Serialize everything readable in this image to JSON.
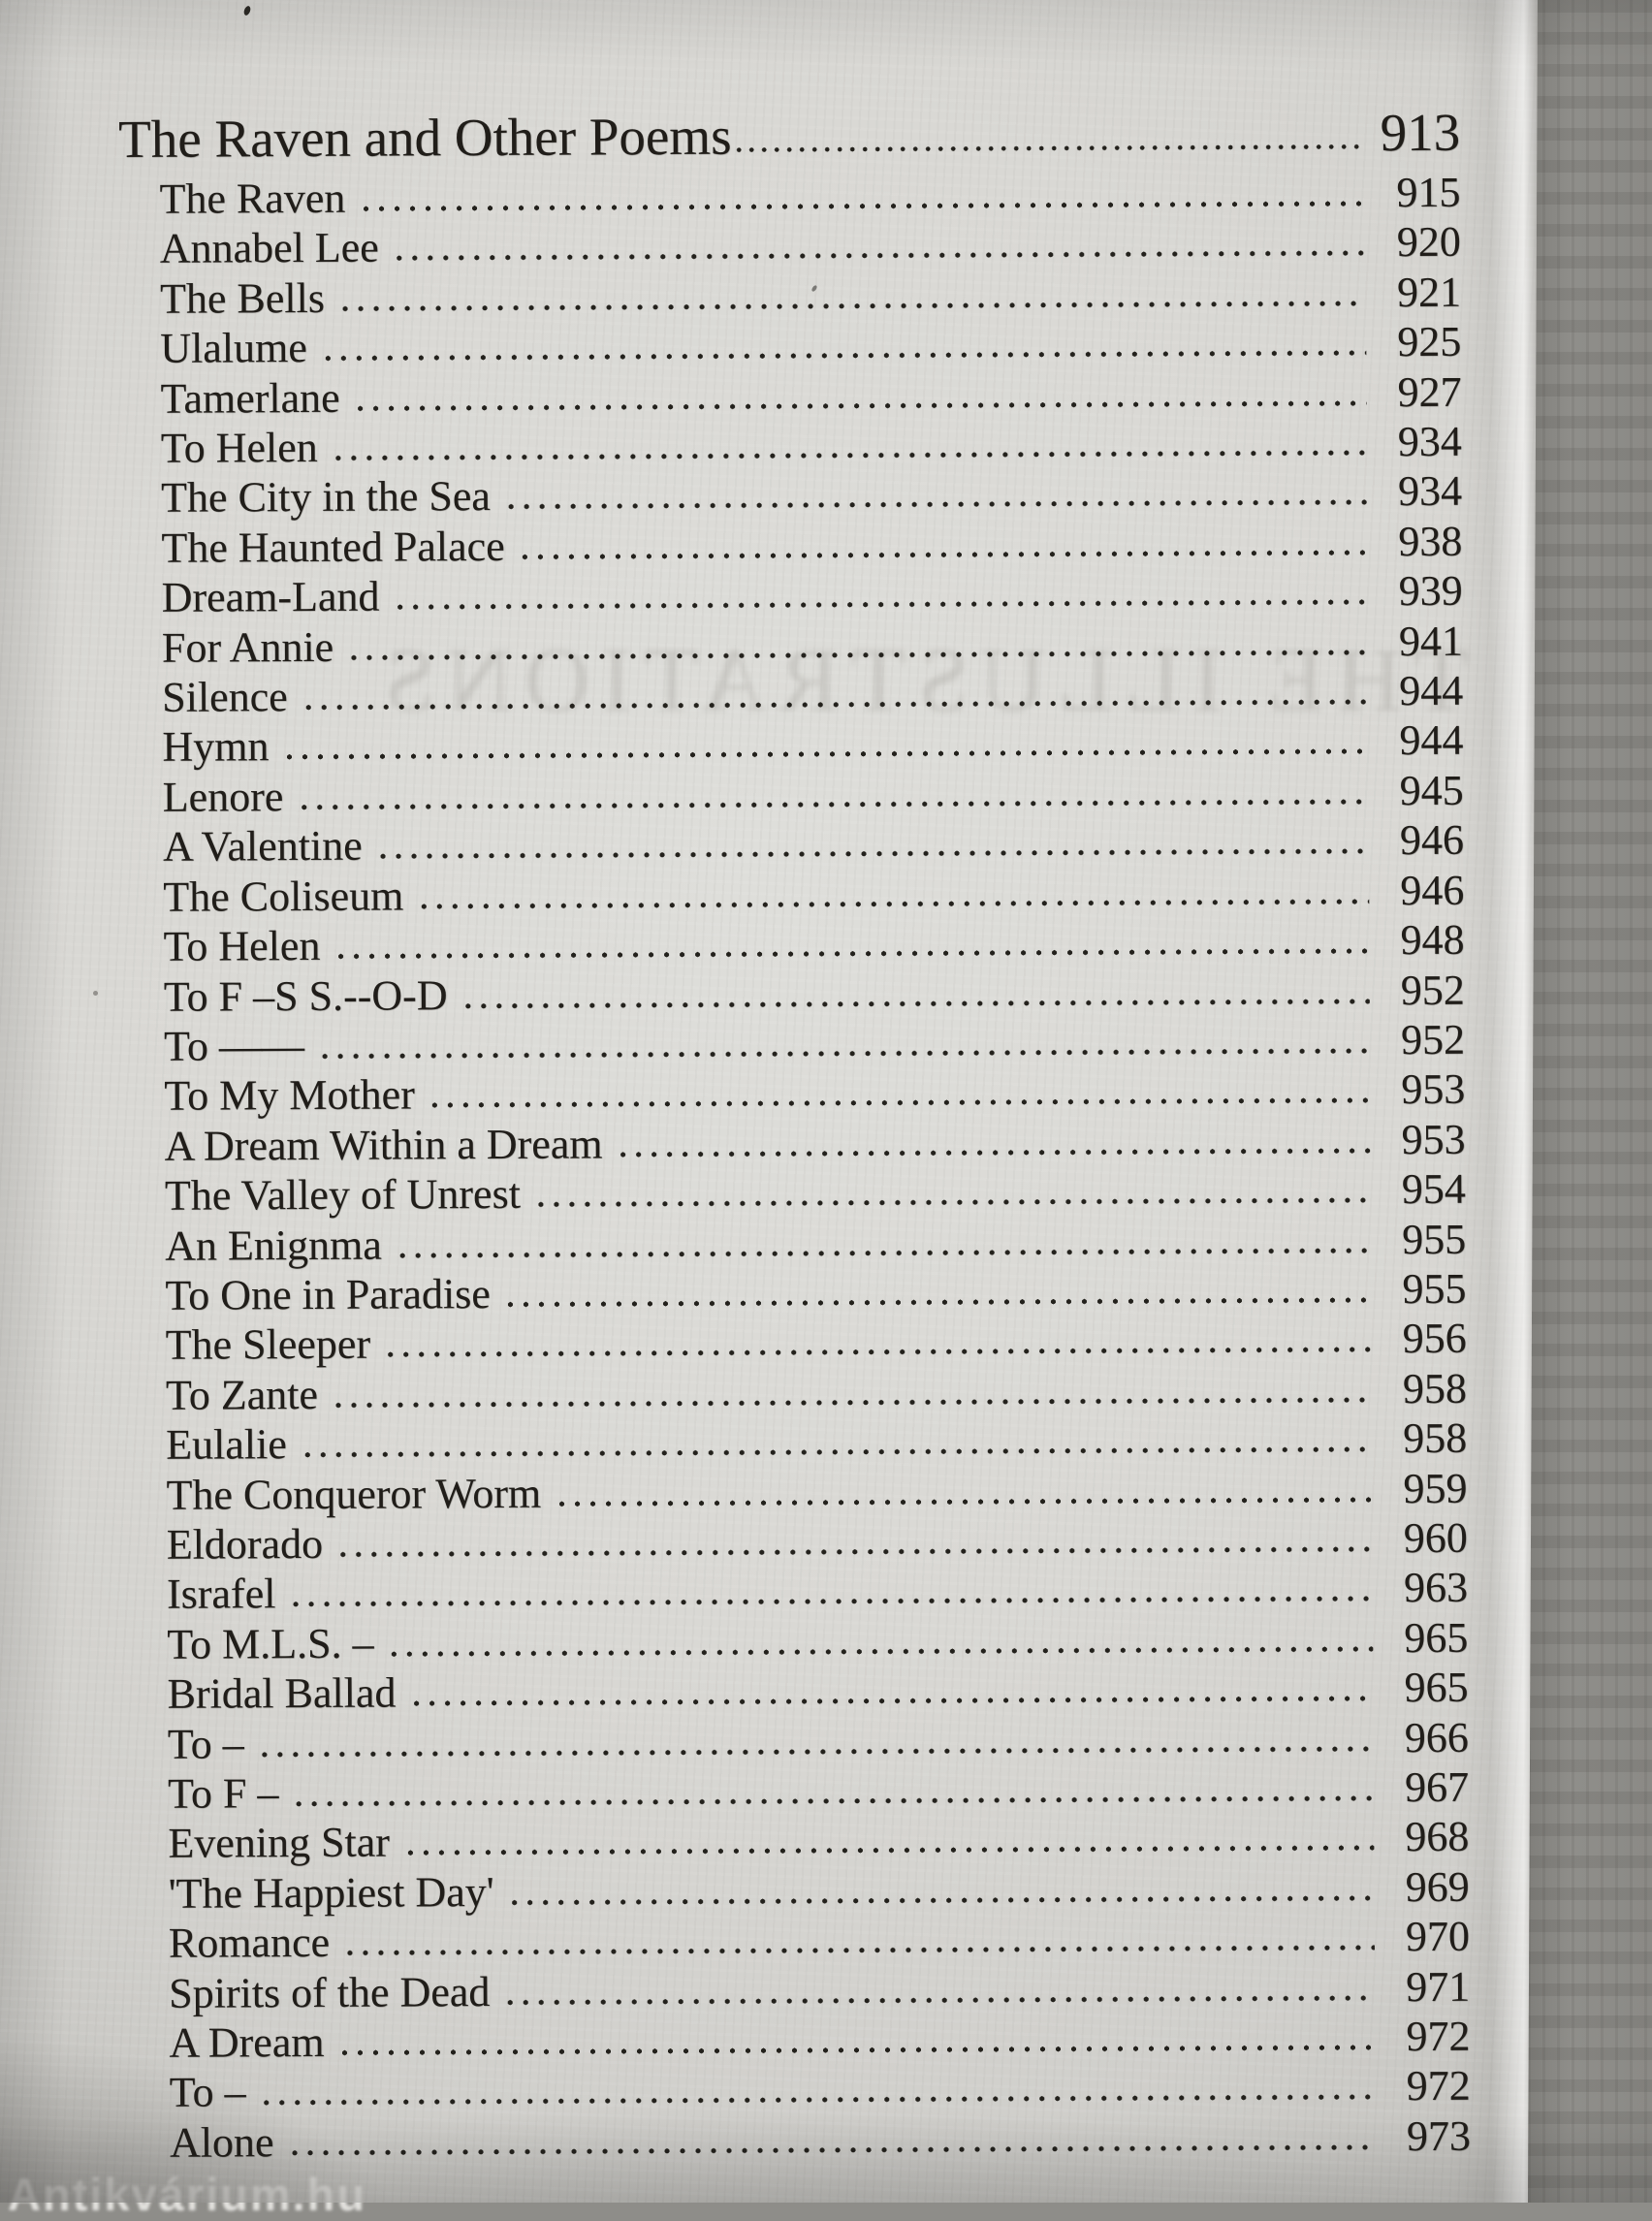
{
  "photo": {
    "watermark": "Antikvárium.hu",
    "ghost_heading": "THE ILLUSTRATIONS"
  },
  "colors": {
    "paper": "#d9d8d4",
    "ink": "#201d19",
    "side_strip": "#8b8a86"
  },
  "toc": {
    "section": {
      "title": "The Raven and Other Poems",
      "page": "913"
    },
    "entries": [
      {
        "title": "The Raven",
        "page": "915"
      },
      {
        "title": "Annabel Lee",
        "page": "920"
      },
      {
        "title": "The Bells",
        "page": "921"
      },
      {
        "title": "Ulalume",
        "page": "925"
      },
      {
        "title": "Tamerlane",
        "page": "927"
      },
      {
        "title": "To Helen",
        "page": "934"
      },
      {
        "title": "The City in the Sea",
        "page": "934"
      },
      {
        "title": "The Haunted Palace",
        "page": "938"
      },
      {
        "title": "Dream-Land",
        "page": "939"
      },
      {
        "title": "For Annie",
        "page": "941"
      },
      {
        "title": "Silence",
        "page": "944"
      },
      {
        "title": "Hymn",
        "page": "944"
      },
      {
        "title": "Lenore",
        "page": "945"
      },
      {
        "title": "A Valentine",
        "page": "946"
      },
      {
        "title": "The Coliseum",
        "page": "946"
      },
      {
        "title": "To Helen",
        "page": "948"
      },
      {
        "title": "To F –S S.--O-D",
        "page": "952"
      },
      {
        "title": "To ——",
        "page": "952"
      },
      {
        "title": "To My Mother",
        "page": "953"
      },
      {
        "title": "A Dream Within a Dream",
        "page": "953"
      },
      {
        "title": "The Valley of Unrest",
        "page": "954"
      },
      {
        "title": "An Enignma",
        "page": "955"
      },
      {
        "title": "To One in Paradise",
        "page": "955"
      },
      {
        "title": "The Sleeper",
        "page": "956"
      },
      {
        "title": "To Zante",
        "page": "958"
      },
      {
        "title": "Eulalie",
        "page": "958"
      },
      {
        "title": "The Conqueror Worm",
        "page": "959"
      },
      {
        "title": "Eldorado",
        "page": "960"
      },
      {
        "title": "Israfel",
        "page": "963"
      },
      {
        "title": "To M.L.S. –",
        "page": "965"
      },
      {
        "title": "Bridal Ballad",
        "page": "965"
      },
      {
        "title": "To –",
        "page": "966"
      },
      {
        "title": "To F –",
        "page": "967"
      },
      {
        "title": "Evening Star",
        "page": "968"
      },
      {
        "title": "'The Happiest Day'",
        "page": "969"
      },
      {
        "title": "Romance",
        "page": "970"
      },
      {
        "title": "Spirits of the Dead",
        "page": "971"
      },
      {
        "title": "A Dream",
        "page": "972"
      },
      {
        "title": "To –",
        "page": "972"
      },
      {
        "title": "Alone",
        "page": "973"
      }
    ]
  }
}
